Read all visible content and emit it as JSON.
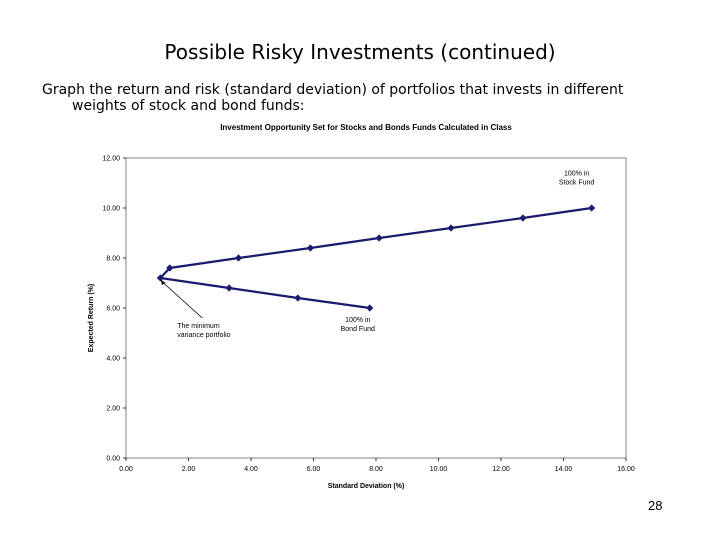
{
  "slide": {
    "title": "Possible Risky Investments (continued)",
    "body_line1": "Graph the return and risk (standard deviation) of portfolios that invests in different",
    "body_line2": "weights of stock and bond funds:",
    "page_number": "28"
  },
  "chart_data": {
    "type": "line",
    "title": "Investment Opportunity Set for Stocks and Bonds Funds Calculated in Class",
    "xlabel": "Standard Deviation (%)",
    "ylabel": "Expected Return (%)",
    "xlim": [
      0,
      16
    ],
    "ylim": [
      0,
      12
    ],
    "x_ticks": [
      "0.00",
      "2.00",
      "4.00",
      "6.00",
      "8.00",
      "10.00",
      "12.00",
      "14.00",
      "16.00"
    ],
    "y_ticks": [
      "0.00",
      "2.00",
      "4.00",
      "6.00",
      "8.00",
      "10.00",
      "12.00"
    ],
    "grid": false,
    "line_color": "#1a1a6e",
    "series": [
      {
        "points": [
          {
            "x": 7.8,
            "y": 6.0
          },
          {
            "x": 5.5,
            "y": 6.4
          },
          {
            "x": 3.3,
            "y": 6.8
          },
          {
            "x": 1.1,
            "y": 7.2
          },
          {
            "x": 1.4,
            "y": 7.6
          },
          {
            "x": 3.6,
            "y": 8.0
          },
          {
            "x": 5.9,
            "y": 8.4
          },
          {
            "x": 8.1,
            "y": 8.8
          },
          {
            "x": 10.4,
            "y": 9.2
          },
          {
            "x": 12.7,
            "y": 9.6
          },
          {
            "x": 14.9,
            "y": 10.0
          }
        ]
      }
    ],
    "annotations": [
      {
        "id": "min-var",
        "lines": [
          "The minimum",
          "variance portfolio"
        ],
        "target": {
          "x": 1.1,
          "y": 7.2
        }
      },
      {
        "id": "bond",
        "lines": [
          "100% in",
          "Bond Fund"
        ],
        "target": {
          "x": 7.8,
          "y": 6.0
        }
      },
      {
        "id": "stock",
        "lines": [
          "100% in",
          "Stock Fund"
        ],
        "target": {
          "x": 14.9,
          "y": 10.0
        }
      }
    ]
  }
}
